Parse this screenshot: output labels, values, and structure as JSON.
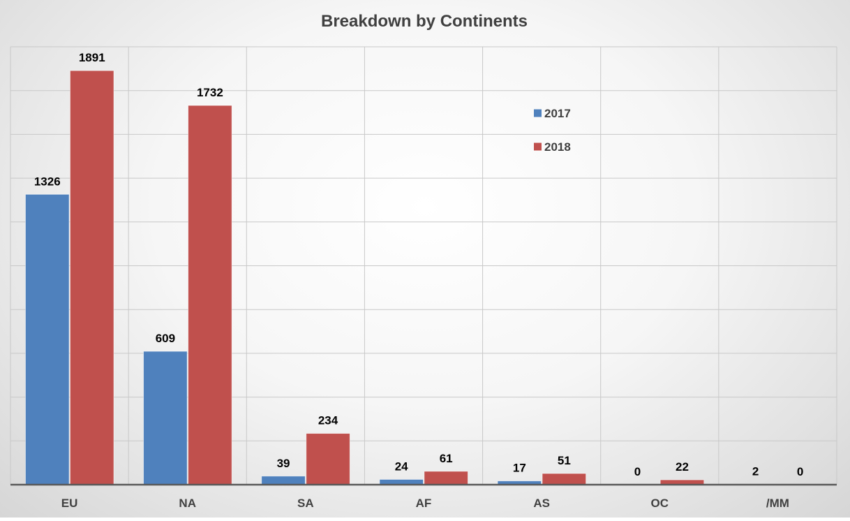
{
  "chart_data": {
    "type": "bar",
    "title": "Breakdown by Continents",
    "xlabel": "",
    "ylabel": "",
    "categories": [
      "EU",
      "NA",
      "SA",
      "AF",
      "AS",
      "OC",
      "/MM"
    ],
    "series": [
      {
        "name": "2017",
        "color": "#4f81bd",
        "values": [
          1326,
          609,
          39,
          24,
          17,
          0,
          2
        ],
        "labels": [
          "1326",
          "609",
          "39",
          "24",
          "17",
          "0",
          "2"
        ]
      },
      {
        "name": "2018",
        "color": "#c0504d",
        "values": [
          1891,
          1732,
          234,
          61,
          51,
          22,
          0
        ],
        "labels": [
          "1891",
          "1732",
          "234",
          "61",
          "51",
          "22",
          "0"
        ]
      }
    ],
    "ylim": [
      0,
      2000
    ],
    "grid": true,
    "legend_position": "top-right"
  }
}
